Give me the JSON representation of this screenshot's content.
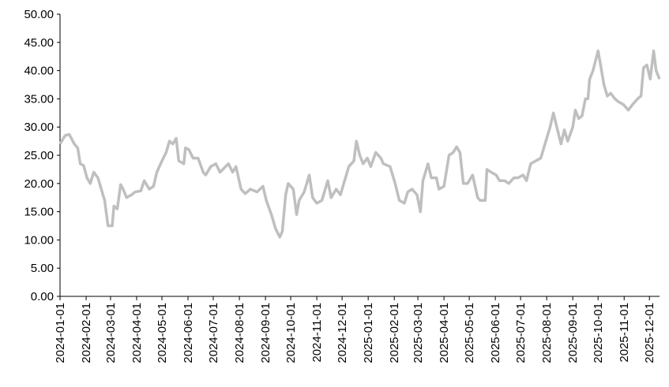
{
  "chart_data": {
    "type": "line",
    "x": [
      "2024-01-01",
      "2024-01-07",
      "2024-01-12",
      "2024-01-18",
      "2024-01-22",
      "2024-01-25",
      "2024-01-29",
      "2024-02-02",
      "2024-02-06",
      "2024-02-10",
      "2024-02-15",
      "2024-02-19",
      "2024-02-23",
      "2024-02-27",
      "2024-03-03",
      "2024-03-05",
      "2024-03-09",
      "2024-03-13",
      "2024-03-16",
      "2024-03-20",
      "2024-03-26",
      "2024-03-30",
      "2024-04-06",
      "2024-04-10",
      "2024-04-16",
      "2024-04-21",
      "2024-04-25",
      "2024-05-01",
      "2024-05-06",
      "2024-05-10",
      "2024-05-14",
      "2024-05-18",
      "2024-05-21",
      "2024-05-27",
      "2024-05-29",
      "2024-06-02",
      "2024-06-07",
      "2024-06-13",
      "2024-06-19",
      "2024-06-22",
      "2024-06-28",
      "2024-07-04",
      "2024-07-09",
      "2024-07-19",
      "2024-07-24",
      "2024-07-28",
      "2024-08-03",
      "2024-08-08",
      "2024-08-14",
      "2024-08-22",
      "2024-08-29",
      "2024-09-02",
      "2024-09-08",
      "2024-09-13",
      "2024-09-18",
      "2024-09-21",
      "2024-09-25",
      "2024-09-28",
      "2024-10-04",
      "2024-10-08",
      "2024-10-11",
      "2024-10-17",
      "2024-10-23",
      "2024-10-27",
      "2024-11-01",
      "2024-11-07",
      "2024-11-14",
      "2024-11-18",
      "2024-11-24",
      "2024-11-29",
      "2024-12-03",
      "2024-12-09",
      "2024-12-15",
      "2024-12-18",
      "2024-12-22",
      "2024-12-26",
      "2024-12-31",
      "2025-01-04",
      "2025-01-10",
      "2025-01-16",
      "2025-01-19",
      "2025-01-27",
      "2025-02-02",
      "2025-02-07",
      "2025-02-13",
      "2025-02-17",
      "2025-02-22",
      "2025-02-28",
      "2025-03-04",
      "2025-03-07",
      "2025-03-13",
      "2025-03-17",
      "2025-03-23",
      "2025-03-26",
      "2025-04-01",
      "2025-04-07",
      "2025-04-12",
      "2025-04-16",
      "2025-04-20",
      "2025-04-24",
      "2025-04-29",
      "2025-05-05",
      "2025-05-11",
      "2025-05-14",
      "2025-05-20",
      "2025-05-22",
      "2025-05-27",
      "2025-06-02",
      "2025-06-06",
      "2025-06-12",
      "2025-06-17",
      "2025-06-23",
      "2025-06-28",
      "2025-07-04",
      "2025-07-08",
      "2025-07-13",
      "2025-07-19",
      "2025-07-25",
      "2025-07-30",
      "2025-08-05",
      "2025-08-09",
      "2025-08-13",
      "2025-08-18",
      "2025-08-22",
      "2025-08-26",
      "2025-09-01",
      "2025-09-04",
      "2025-09-08",
      "2025-09-12",
      "2025-09-16",
      "2025-09-19",
      "2025-09-21",
      "2025-09-25",
      "2025-10-01",
      "2025-10-04",
      "2025-10-08",
      "2025-10-12",
      "2025-10-16",
      "2025-10-21",
      "2025-10-25",
      "2025-10-31",
      "2025-11-06",
      "2025-11-11",
      "2025-11-17",
      "2025-11-21",
      "2025-11-24",
      "2025-11-28",
      "2025-12-02",
      "2025-12-04",
      "2025-12-06",
      "2025-12-09",
      "2025-12-13"
    ],
    "values": [
      27,
      28.5,
      28.7,
      27,
      26.3,
      23.5,
      23.2,
      21,
      20,
      22,
      21,
      19,
      17,
      12.5,
      12.5,
      16,
      15.5,
      19.8,
      19,
      17.5,
      18,
      18.5,
      18.7,
      20.5,
      19,
      19.5,
      22,
      24,
      25.5,
      27.5,
      27,
      28,
      24,
      23.5,
      26.3,
      26,
      24.5,
      24.5,
      22,
      21.5,
      23,
      23.5,
      22,
      23.5,
      22,
      23,
      19,
      18.2,
      19,
      18.5,
      19.5,
      17,
      14.5,
      12,
      10.5,
      11.5,
      18,
      20,
      19,
      14.5,
      17,
      18.5,
      21.5,
      17.5,
      16.5,
      17,
      20.5,
      17.5,
      19,
      18,
      20,
      23,
      24,
      27.5,
      25,
      23.5,
      24.5,
      23,
      25.5,
      24.5,
      23.5,
      23,
      20,
      17,
      16.5,
      18.5,
      19,
      18,
      15,
      20.5,
      23.5,
      21,
      21,
      19,
      19.5,
      25,
      25.5,
      26.5,
      25.5,
      20,
      20,
      21.5,
      17.5,
      17,
      17,
      22.5,
      22,
      21.5,
      20.5,
      20.5,
      20,
      21,
      21,
      21.5,
      20.5,
      23.5,
      24,
      24.5,
      27,
      30,
      32.5,
      30,
      27,
      29.5,
      27.5,
      30,
      33,
      31.5,
      32,
      35,
      35,
      38.5,
      40,
      43.5,
      41,
      37.5,
      35.5,
      36,
      35,
      34.5,
      34,
      33,
      34,
      35,
      35.5,
      40.5,
      41,
      38.5,
      41,
      43.5,
      40,
      38.5
    ],
    "color": "#bfbfbf",
    "xlim": [
      "2024-01-01",
      "2025-12-13"
    ],
    "xticks": [
      "2024-01-01",
      "2024-02-01",
      "2024-03-01",
      "2024-04-01",
      "2024-05-01",
      "2024-06-01",
      "2024-07-01",
      "2024-08-01",
      "2024-09-01",
      "2024-10-01",
      "2024-11-01",
      "2024-12-01",
      "2025-01-01",
      "2025-02-01",
      "2025-03-01",
      "2025-04-01",
      "2025-05-01",
      "2025-06-01",
      "2025-07-01",
      "2025-08-01",
      "2025-09-01",
      "2025-10-01",
      "2025-11-01",
      "2025-12-01"
    ],
    "ylim": [
      0,
      50
    ],
    "yticks": [
      {
        "value": 0,
        "label": "0.00"
      },
      {
        "value": 5,
        "label": "5.00"
      },
      {
        "value": 10,
        "label": "10.00"
      },
      {
        "value": 15,
        "label": "15.00"
      },
      {
        "value": 20,
        "label": "20.00"
      },
      {
        "value": 25,
        "label": "25.00"
      },
      {
        "value": 30,
        "label": "30.00"
      },
      {
        "value": 35,
        "label": "35.00"
      },
      {
        "value": 40,
        "label": "40.00"
      },
      {
        "value": 45,
        "label": "45.00"
      },
      {
        "value": 50,
        "label": "50.00"
      }
    ],
    "grid": false
  }
}
